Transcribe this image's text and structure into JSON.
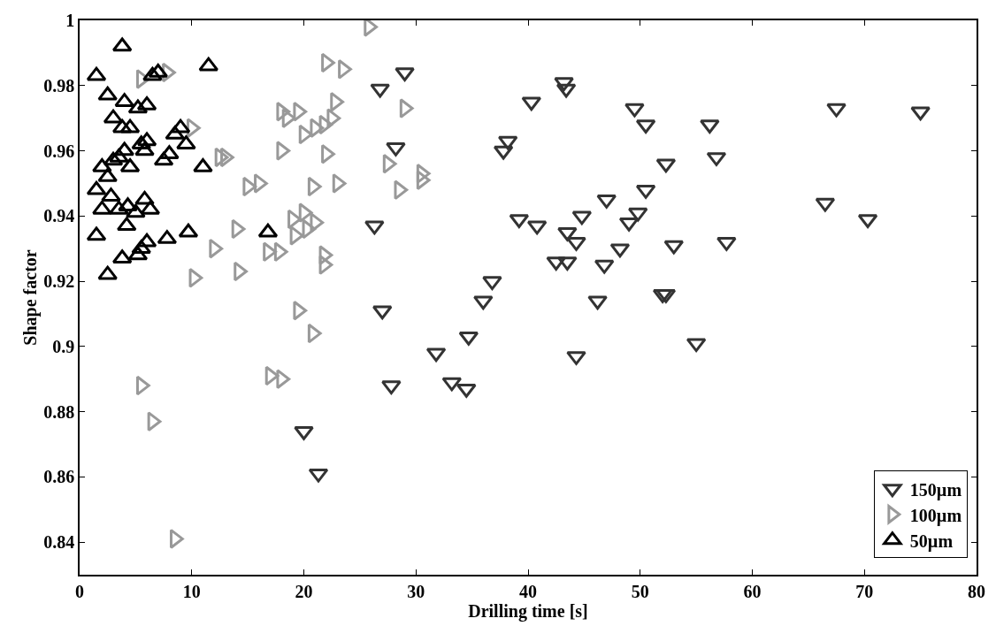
{
  "chart_data": {
    "type": "scatter",
    "xlabel": "Drilling time [s]",
    "ylabel": "Shape factor",
    "xlim": [
      0,
      80
    ],
    "xticks": [
      0,
      10,
      20,
      30,
      40,
      50,
      60,
      70,
      80
    ],
    "ylim": [
      0.83,
      1.0
    ],
    "yticks": [
      0.84,
      0.86,
      0.88,
      0.9,
      0.92,
      0.94,
      0.96,
      0.98,
      1
    ],
    "grid": false,
    "legend": "bottom right",
    "series": [
      {
        "name": "150µm",
        "color": "#333333",
        "marker": "triangle-down",
        "x": [
          20,
          21.3,
          26.3,
          26.8,
          27,
          27.8,
          28.2,
          29,
          31.8,
          33.2,
          34.5,
          34.7,
          36,
          36.8,
          37.8,
          38.2,
          39.2,
          40.3,
          40.8,
          42.5,
          43.2,
          43.4,
          43.5,
          43.5,
          44.3,
          44.3,
          44.8,
          46.2,
          46.8,
          47,
          48.2,
          49,
          49.5,
          49.8,
          50.5,
          50.5,
          52,
          52.3,
          52.3,
          53,
          55,
          56.2,
          56.8,
          57.7,
          66.5,
          67.5,
          70.3,
          75
        ],
        "values": [
          0.874,
          0.861,
          0.937,
          0.979,
          0.911,
          0.888,
          0.961,
          0.984,
          0.898,
          0.889,
          0.887,
          0.903,
          0.914,
          0.92,
          0.96,
          0.963,
          0.939,
          0.975,
          0.937,
          0.926,
          0.981,
          0.979,
          0.935,
          0.926,
          0.932,
          0.897,
          0.94,
          0.914,
          0.925,
          0.945,
          0.93,
          0.938,
          0.973,
          0.941,
          0.968,
          0.948,
          0.916,
          0.916,
          0.956,
          0.931,
          0.901,
          0.968,
          0.958,
          0.932,
          0.944,
          0.973,
          0.939,
          0.972
        ]
      },
      {
        "name": "100µm",
        "color": "#999999",
        "marker": "triangle-right",
        "x": [
          5.5,
          6.5,
          8.5,
          5.5,
          6.8,
          7.8,
          10,
          10.2,
          12.5,
          13,
          14,
          14.2,
          12,
          15,
          16,
          16.8,
          17,
          17.8,
          18,
          18,
          18,
          18.5,
          19,
          19.2,
          19.5,
          19.5,
          20,
          20,
          20.3,
          20.8,
          20.8,
          21,
          21,
          21.8,
          21.8,
          21.8,
          22,
          22,
          22.8,
          23,
          23.5,
          25.8,
          27.5,
          28.5,
          29,
          30.5,
          30.5,
          22.5
        ],
        "values": [
          0.888,
          0.877,
          0.841,
          0.982,
          null,
          0.984,
          0.967,
          0.921,
          0.958,
          0.958,
          0.936,
          0.923,
          0.93,
          0.949,
          0.95,
          0.929,
          0.891,
          0.929,
          0.89,
          0.96,
          0.972,
          0.97,
          0.939,
          0.934,
          0.911,
          0.972,
          0.941,
          0.965,
          0.936,
          0.949,
          0.904,
          0.967,
          0.938,
          0.925,
          0.928,
          0.968,
          0.959,
          0.987,
          0.975,
          0.95,
          0.985,
          0.998,
          0.956,
          0.948,
          0.973,
          0.953,
          0.951,
          0.97
        ]
      },
      {
        "name": "50µm",
        "color": "#000000",
        "marker": "triangle",
        "x": [
          1.5,
          3.8,
          7,
          6.5,
          11.5,
          2.5,
          4,
          3,
          5.2,
          6,
          3.8,
          4.5,
          6,
          8.5,
          9,
          7.5,
          8,
          9.5,
          11,
          2,
          3,
          3.5,
          4,
          4.5,
          5,
          5.5,
          5.8,
          1.5,
          2.5,
          2.8,
          2,
          3.5,
          4,
          4.3,
          5,
          5.8,
          6.3,
          1.5,
          4.2,
          7.8,
          9.7,
          16.8,
          5.5,
          6,
          3.8,
          4.8,
          5.2,
          2.5
        ],
        "values": [
          0.983,
          0.992,
          0.984,
          0.983,
          0.986,
          0.977,
          0.975,
          0.97,
          0.973,
          0.974,
          0.967,
          0.967,
          0.963,
          0.965,
          0.967,
          0.957,
          0.959,
          0.962,
          0.955,
          0.955,
          0.957,
          0.958,
          0.96,
          0.955,
          null,
          0.962,
          0.96,
          0.948,
          0.952,
          0.946,
          0.942,
          0.942,
          null,
          0.943,
          0.941,
          0.945,
          0.942,
          0.934,
          0.937,
          0.933,
          0.935,
          0.935,
          0.93,
          0.932,
          0.927,
          null,
          0.928,
          0.922
        ]
      }
    ]
  }
}
